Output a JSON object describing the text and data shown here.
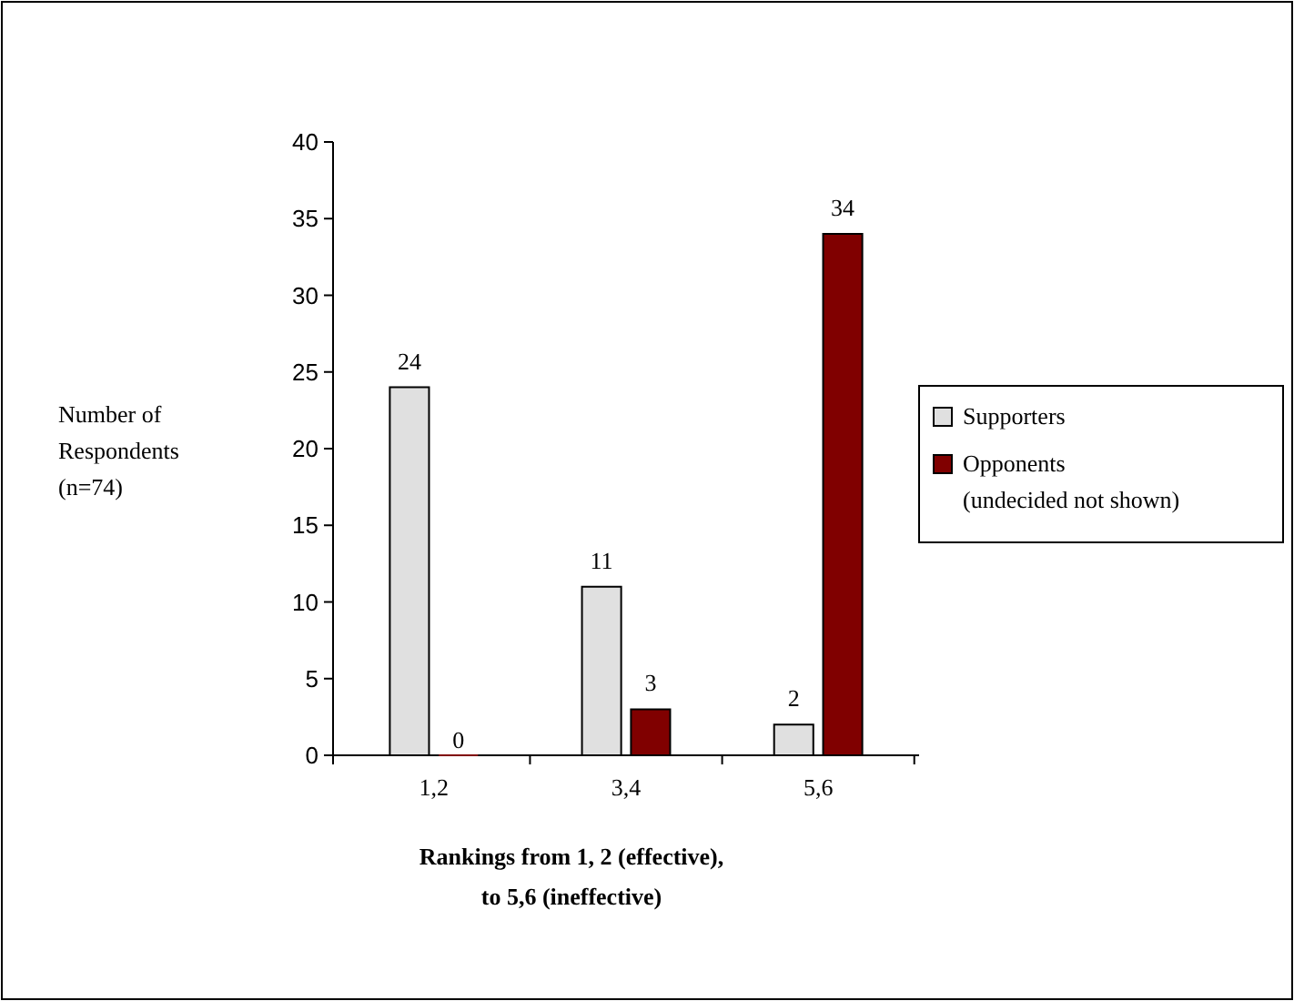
{
  "chart_data": {
    "type": "bar",
    "categories": [
      "1,2",
      "3,4",
      "5,6"
    ],
    "xlabel": "Rankings from 1, 2 (effective), to 5,6 (ineffective)",
    "ylabel": "Number of Respondents (n=74)",
    "ylim": [
      0,
      40
    ],
    "yticks": [
      0,
      5,
      10,
      15,
      20,
      25,
      30,
      35,
      40
    ],
    "grid": false,
    "legend": "right",
    "data_labels": true,
    "series": [
      {
        "name": "Supporters",
        "color": "#e0e0e0",
        "values": [
          24,
          11,
          2
        ]
      },
      {
        "name": "Opponents",
        "color": "#800000",
        "values": [
          0,
          3,
          34
        ]
      }
    ],
    "annotations": [
      "(undecided not shown)"
    ]
  }
}
